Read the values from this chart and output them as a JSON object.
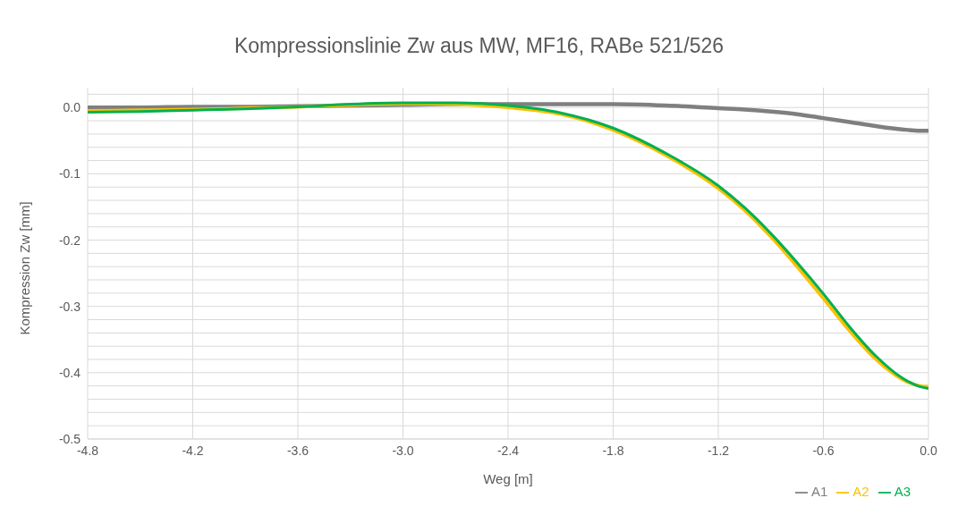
{
  "chart_data": {
    "type": "line",
    "title": "Kompressionslinie Zw aus MW, MF16, RABe 521/526",
    "xlabel": "Weg [m]",
    "ylabel": "Kompression Zw [mm]",
    "x": [
      -4.8,
      -4.5,
      -4.2,
      -3.9,
      -3.6,
      -3.3,
      -3.0,
      -2.7,
      -2.4,
      -2.1,
      -1.8,
      -1.5,
      -1.2,
      -1.05,
      -0.9,
      -0.75,
      -0.6,
      -0.45,
      -0.3,
      -0.15,
      -0.05,
      0.0
    ],
    "series": [
      {
        "name": "A1",
        "color": "#7f7f7f",
        "values": [
          0.0,
          0.0,
          0.001,
          0.001,
          0.002,
          0.003,
          0.004,
          0.005,
          0.005,
          0.005,
          0.005,
          0.003,
          -0.001,
          -0.003,
          -0.006,
          -0.01,
          -0.016,
          -0.022,
          -0.028,
          -0.033,
          -0.035,
          -0.035
        ]
      },
      {
        "name": "A2",
        "color": "#ffc000",
        "values": [
          -0.005,
          -0.004,
          -0.003,
          -0.001,
          0.001,
          0.004,
          0.006,
          0.005,
          0.0,
          -0.01,
          -0.034,
          -0.072,
          -0.122,
          -0.155,
          -0.195,
          -0.24,
          -0.288,
          -0.337,
          -0.38,
          -0.41,
          -0.42,
          -0.421
        ]
      },
      {
        "name": "A3",
        "color": "#00b050",
        "values": [
          -0.007,
          -0.006,
          -0.004,
          -0.002,
          0.001,
          0.005,
          0.007,
          0.007,
          0.003,
          -0.008,
          -0.031,
          -0.069,
          -0.118,
          -0.151,
          -0.19,
          -0.234,
          -0.281,
          -0.331,
          -0.375,
          -0.408,
          -0.421,
          -0.424
        ]
      }
    ],
    "xlim": [
      -4.8,
      0.0
    ],
    "xticks": [
      {
        "value": -4.8,
        "label": "-4.8"
      },
      {
        "value": -4.2,
        "label": "-4.2"
      },
      {
        "value": -3.6,
        "label": "-3.6"
      },
      {
        "value": -3.0,
        "label": "-3.0"
      },
      {
        "value": -2.4,
        "label": "-2.4"
      },
      {
        "value": -1.8,
        "label": "-1.8"
      },
      {
        "value": -1.2,
        "label": "-1.2"
      },
      {
        "value": -0.6,
        "label": "-0.6"
      },
      {
        "value": 0,
        "label": "0.0"
      }
    ],
    "ylim": [
      -0.5,
      0.03
    ],
    "yticks": [
      {
        "value": -0.5,
        "label": "-0.5"
      },
      {
        "value": -0.48,
        "label": null
      },
      {
        "value": -0.46,
        "label": null
      },
      {
        "value": -0.44,
        "label": null
      },
      {
        "value": -0.42,
        "label": null
      },
      {
        "value": -0.4,
        "label": "-0.4"
      },
      {
        "value": -0.38,
        "label": null
      },
      {
        "value": -0.36,
        "label": null
      },
      {
        "value": -0.34,
        "label": null
      },
      {
        "value": -0.32,
        "label": null
      },
      {
        "value": -0.3,
        "label": "-0.3"
      },
      {
        "value": -0.28,
        "label": null
      },
      {
        "value": -0.26,
        "label": null
      },
      {
        "value": -0.24,
        "label": null
      },
      {
        "value": -0.22,
        "label": null
      },
      {
        "value": -0.2,
        "label": "-0.2"
      },
      {
        "value": -0.18,
        "label": null
      },
      {
        "value": -0.16,
        "label": null
      },
      {
        "value": -0.14,
        "label": null
      },
      {
        "value": -0.12,
        "label": null
      },
      {
        "value": -0.1,
        "label": "-0.1"
      },
      {
        "value": -0.08,
        "label": null
      },
      {
        "value": -0.06,
        "label": null
      },
      {
        "value": -0.04,
        "label": null
      },
      {
        "value": -0.02,
        "label": null
      },
      {
        "value": 0,
        "label": "0.0"
      },
      {
        "value": 0.02,
        "label": null
      }
    ],
    "grid": true,
    "legend": "bottom right",
    "marker": "none",
    "line_style": "solid"
  }
}
